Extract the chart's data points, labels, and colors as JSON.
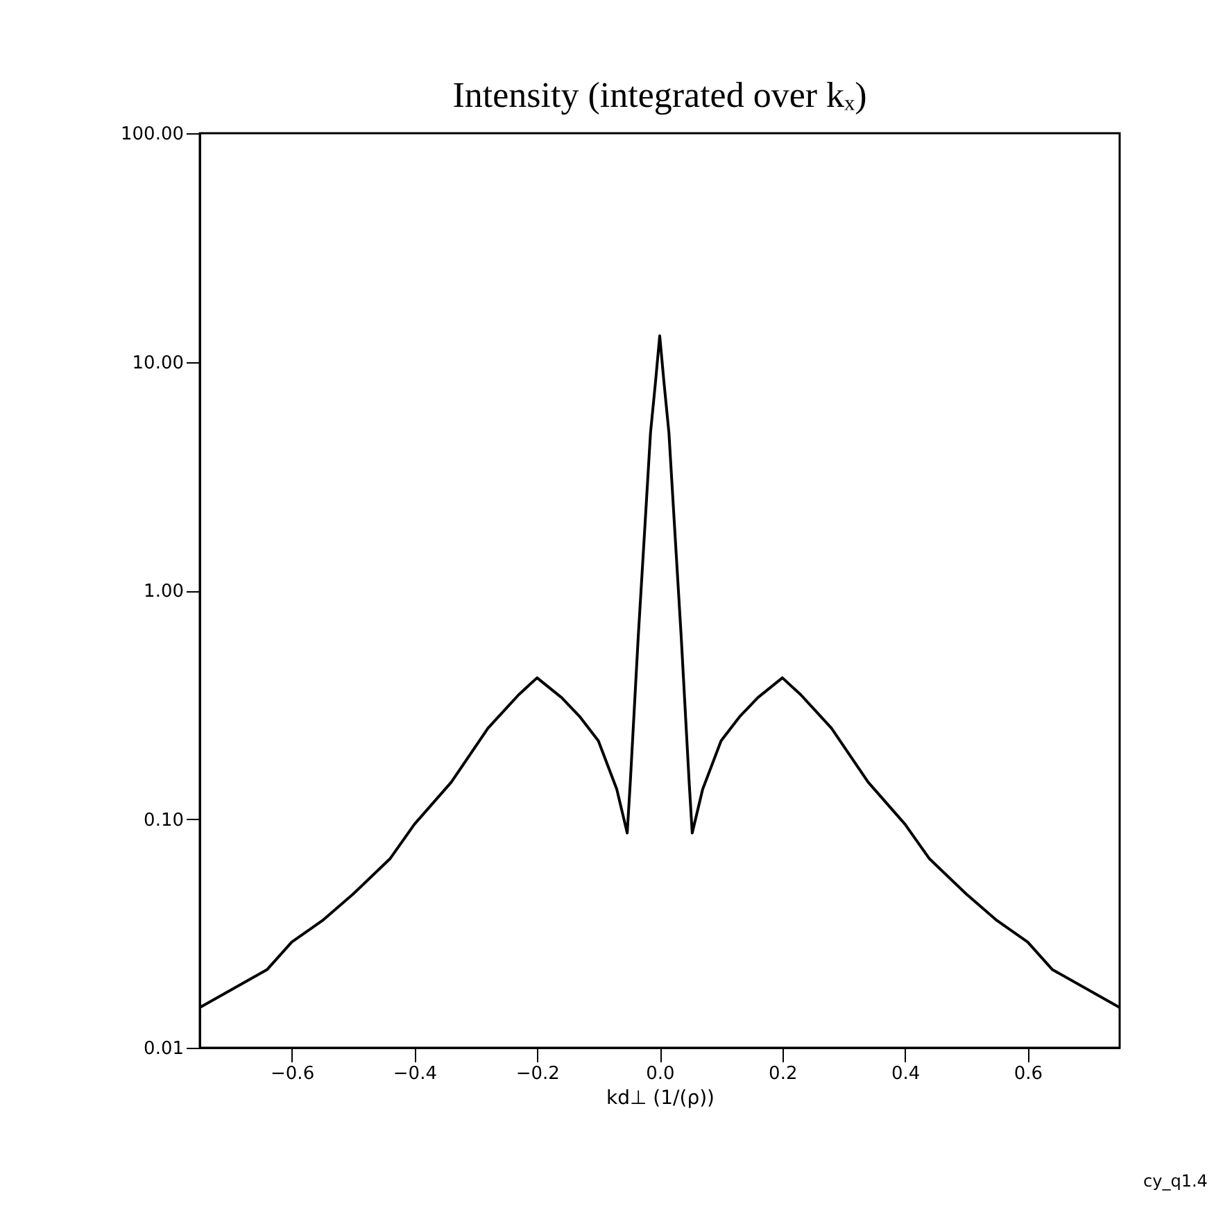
{
  "chart_data": {
    "type": "line",
    "title": "Intensity (integrated over kₓ)",
    "xlabel": "kd⊥ (1/(ρ))",
    "annotations": [
      "cy_q1.4"
    ],
    "log": "y",
    "grid": false,
    "marker": "none",
    "line_style": "solid",
    "xlim": [
      -0.75,
      0.75
    ],
    "ylim": [
      0.01,
      100
    ],
    "xticks": [
      -0.6,
      -0.4,
      -0.2,
      {
        "value": 0,
        "label": "0.0"
      },
      0.2,
      0.4,
      0.6
    ],
    "yticks": [
      {
        "value": 0.01,
        "label": "0.01"
      },
      {
        "value": 0.1,
        "label": "0.10"
      },
      {
        "value": 1,
        "label": "1.00"
      },
      {
        "value": 10,
        "label": "10.00"
      },
      {
        "value": 100,
        "label": "100.00"
      }
    ],
    "series": [
      {
        "color": "#000000",
        "x": [
          -0.75,
          -0.64,
          -0.6,
          -0.55,
          -0.5,
          -0.44,
          -0.4,
          -0.34,
          -0.28,
          -0.23,
          -0.2,
          -0.16,
          -0.13,
          -0.1,
          -0.07,
          -0.053,
          -0.048,
          -0.035,
          -0.025,
          -0.015,
          -0.007,
          0.0,
          0.007,
          0.015,
          0.025,
          0.035,
          0.048,
          0.053,
          0.07,
          0.1,
          0.13,
          0.16,
          0.2,
          0.23,
          0.28,
          0.34,
          0.4,
          0.44,
          0.5,
          0.55,
          0.6,
          0.64,
          0.75
        ],
        "values": [
          0.015,
          0.022,
          0.029,
          0.036,
          0.047,
          0.067,
          0.095,
          0.145,
          0.25,
          0.35,
          0.415,
          0.34,
          0.28,
          0.22,
          0.135,
          0.087,
          0.145,
          0.63,
          1.75,
          4.9,
          8.1,
          13,
          8.1,
          4.9,
          1.75,
          0.63,
          0.145,
          0.087,
          0.135,
          0.22,
          0.28,
          0.34,
          0.415,
          0.35,
          0.25,
          0.145,
          0.095,
          0.067,
          0.047,
          0.036,
          0.029,
          0.022,
          0.015
        ]
      }
    ]
  }
}
